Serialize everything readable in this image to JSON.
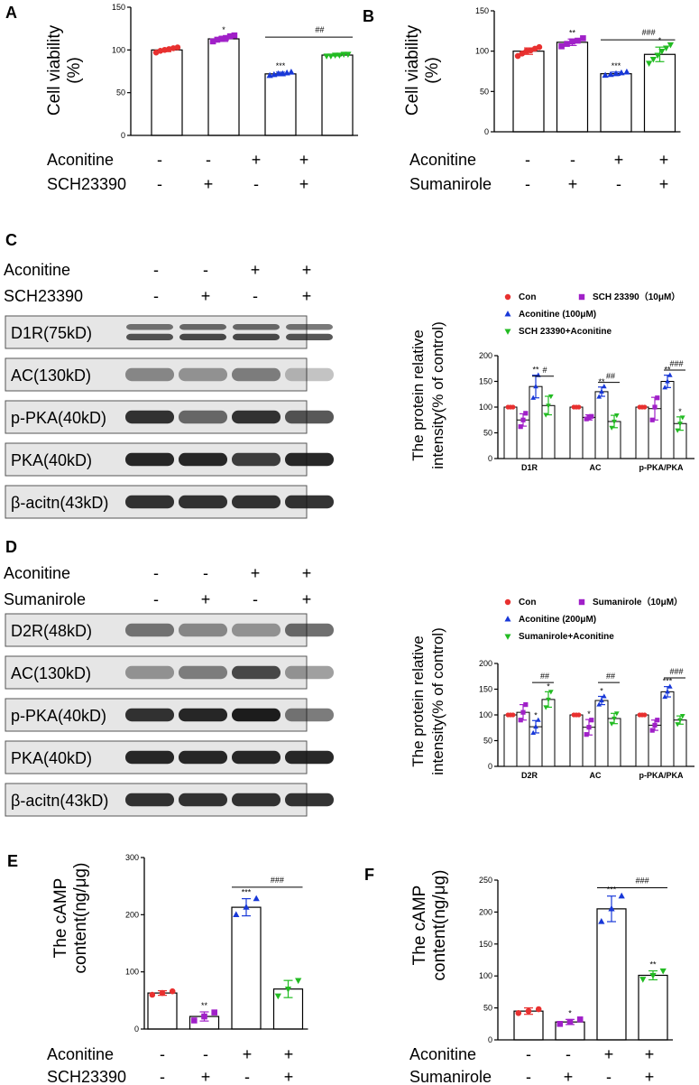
{
  "colors": {
    "con": "#e8302f",
    "drug": "#a020c8",
    "aconitine": "#1838d8",
    "combo": "#22bb22",
    "axis": "#000000",
    "band": "#111111"
  },
  "sig_marks": {
    "one": "*",
    "two": "**",
    "three": "***",
    "h1": "#",
    "h2": "##",
    "h3": "###"
  },
  "panels": {
    "A": {
      "label": "A",
      "ylabel_line1": "Cell viability",
      "ylabel_line2": "(%)",
      "rows": [
        {
          "label": "Aconitine",
          "signs": [
            "-",
            "-",
            "+",
            "+"
          ]
        },
        {
          "label": "SCH23390",
          "signs": [
            "-",
            "+",
            "-",
            "+"
          ]
        }
      ]
    },
    "B": {
      "label": "B",
      "ylabel_line1": "Cell viability",
      "ylabel_line2": "(%)",
      "rows": [
        {
          "label": "Aconitine",
          "signs": [
            "-",
            "-",
            "+",
            "+"
          ]
        },
        {
          "label": "Sumanirole",
          "signs": [
            "-",
            "+",
            "-",
            "+"
          ]
        }
      ]
    },
    "C": {
      "label": "C",
      "rows": [
        {
          "label": "Aconitine",
          "signs": [
            "-",
            "-",
            "+",
            "+"
          ]
        },
        {
          "label": "SCH23390",
          "signs": [
            "-",
            "+",
            "-",
            "+"
          ]
        }
      ],
      "blots": [
        "D1R(75kD)",
        "AC(130kD)",
        "p-PKA(40kD)",
        "PKA(40kD)",
        "β-acitn(43kD)"
      ],
      "legend": [
        "Con",
        "SCH 23390（10μM）",
        "Aconitine (100μM)",
        "SCH 23390+Aconitine"
      ],
      "ylabel_line1": "The protein relative",
      "ylabel_line2": "intensity(% of control)"
    },
    "D": {
      "label": "D",
      "rows": [
        {
          "label": "Aconitine",
          "signs": [
            "-",
            "-",
            "+",
            "+"
          ]
        },
        {
          "label": "Sumanirole",
          "signs": [
            "-",
            "+",
            "-",
            "+"
          ]
        }
      ],
      "blots": [
        "D2R(48kD)",
        "AC(130kD)",
        "p-PKA(40kD)",
        "PKA(40kD)",
        "β-acitn(43kD)"
      ],
      "legend": [
        "Con",
        "Sumanirole（10μM）",
        "Aconitine (200μM)",
        "Sumanirole+Aconitine"
      ],
      "ylabel_line1": "The protein relative",
      "ylabel_line2": "intensity(% of control)"
    },
    "E": {
      "label": "E",
      "ylabel_line1": "The cAMP",
      "ylabel_line2": "content(ng/μg)",
      "rows": [
        {
          "label": "Aconitine",
          "signs": [
            "-",
            "-",
            "+",
            "+"
          ]
        },
        {
          "label": "SCH23390",
          "signs": [
            "-",
            "+",
            "-",
            "+"
          ]
        }
      ]
    },
    "F": {
      "label": "F",
      "ylabel_line1": "The cAMP",
      "ylabel_line2": "content(ng/μg)",
      "rows": [
        {
          "label": "Aconitine",
          "signs": [
            "-",
            "-",
            "+",
            "+"
          ]
        },
        {
          "label": "Sumanirole",
          "signs": [
            "-",
            "+",
            "-",
            "+"
          ]
        }
      ]
    }
  },
  "chart_data": [
    {
      "panel": "A",
      "type": "bar",
      "ylim": [
        0,
        150
      ],
      "yticks": [
        0,
        50,
        100,
        150
      ],
      "values": [
        100,
        113,
        72,
        94
      ],
      "errors": [
        2,
        3,
        2,
        1
      ],
      "points": [
        [
          97,
          99,
          100,
          101,
          102,
          103
        ],
        [
          110,
          112,
          113,
          114,
          116,
          117
        ],
        [
          70,
          71,
          72,
          72,
          73,
          74
        ],
        [
          93,
          93,
          94,
          94,
          95,
          95
        ]
      ],
      "marks": [
        "",
        "*",
        "***",
        ""
      ],
      "brackets": [
        {
          "from": 2,
          "to": 3,
          "label": "##"
        }
      ]
    },
    {
      "panel": "B",
      "type": "bar",
      "ylim": [
        0,
        150
      ],
      "yticks": [
        0,
        50,
        100,
        150
      ],
      "values": [
        100,
        111,
        72,
        96
      ],
      "errors": [
        4,
        4,
        2,
        9
      ],
      "points": [
        [
          94,
          97,
          100,
          101,
          103,
          105
        ],
        [
          106,
          109,
          112,
          113,
          116
        ],
        [
          70,
          71,
          72,
          73,
          74
        ],
        [
          85,
          90,
          95,
          100,
          104,
          108
        ]
      ],
      "marks": [
        "",
        "**",
        "***",
        "*"
      ],
      "brackets": [
        {
          "from": 2,
          "to": 3,
          "label": "###"
        }
      ]
    },
    {
      "panel": "C",
      "type": "bar",
      "ylim": [
        0,
        200
      ],
      "yticks": [
        0,
        50,
        100,
        150,
        200
      ],
      "categories": [
        "D1R",
        "AC",
        "p-PKA/PKA"
      ],
      "series": [
        {
          "name": "Con",
          "values": [
            100,
            100,
            100
          ],
          "errors": [
            0,
            0,
            0
          ],
          "points": [
            [
              100,
              100,
              100
            ],
            [
              100,
              100,
              100
            ],
            [
              100,
              100,
              100
            ]
          ]
        },
        {
          "name": "SCH 23390（10μM）",
          "values": [
            75,
            80,
            97
          ],
          "errors": [
            12,
            5,
            22
          ],
          "points": [
            [
              62,
              75,
              88
            ],
            [
              77,
              80,
              82
            ],
            [
              75,
              100,
              118
            ]
          ]
        },
        {
          "name": "Aconitine (100μM)",
          "values": [
            140,
            130,
            150
          ],
          "errors": [
            22,
            9,
            12
          ],
          "points": [
            [
              118,
              140,
              162
            ],
            [
              120,
              130,
              140
            ],
            [
              138,
              150,
              162
            ]
          ]
        },
        {
          "name": "SCH 23390+Aconitine",
          "values": [
            103,
            72,
            68
          ],
          "errors": [
            18,
            12,
            13
          ],
          "points": [
            [
              85,
              103,
              121
            ],
            [
              60,
              72,
              84
            ],
            [
              55,
              68,
              80
            ]
          ]
        }
      ],
      "marks": [
        [
          "",
          "",
          "**",
          ""
        ],
        [
          "",
          "",
          "**",
          ""
        ],
        [
          "",
          "",
          "**",
          "*"
        ]
      ],
      "brackets": [
        {
          "group": 0,
          "label": "#"
        },
        {
          "group": 1,
          "label": "##"
        },
        {
          "group": 2,
          "label": "###"
        }
      ]
    },
    {
      "panel": "D",
      "type": "bar",
      "ylim": [
        0,
        200
      ],
      "yticks": [
        0,
        50,
        100,
        150,
        200
      ],
      "categories": [
        "D2R",
        "AC",
        "p-PKA/PKA"
      ],
      "series": [
        {
          "name": "Con",
          "values": [
            100,
            100,
            100
          ],
          "errors": [
            0,
            0,
            0
          ],
          "points": [
            [
              100,
              100,
              100
            ],
            [
              100,
              100,
              100
            ],
            [
              100,
              100,
              100
            ]
          ]
        },
        {
          "name": "Sumanirole（10μM）",
          "values": [
            105,
            76,
            80
          ],
          "errors": [
            15,
            15,
            10
          ],
          "points": [
            [
              90,
              105,
              120
            ],
            [
              62,
              76,
              90
            ],
            [
              70,
              80,
              90
            ]
          ]
        },
        {
          "name": "Aconitine (200μM)",
          "values": [
            77,
            128,
            145
          ],
          "errors": [
            12,
            8,
            10
          ],
          "points": [
            [
              65,
              77,
              90
            ],
            [
              120,
              128,
              136
            ],
            [
              135,
              145,
              155
            ]
          ]
        },
        {
          "name": "Sumanirole+Aconitine",
          "values": [
            130,
            93,
            90
          ],
          "errors": [
            15,
            10,
            8
          ],
          "points": [
            [
              115,
              130,
              145
            ],
            [
              83,
              93,
              103
            ],
            [
              82,
              90,
              98
            ]
          ]
        }
      ],
      "marks": [
        [
          "",
          "",
          "*",
          "*"
        ],
        [
          "",
          "*",
          "*",
          ""
        ],
        [
          "",
          "",
          "***",
          ""
        ]
      ],
      "brackets": [
        {
          "group": 0,
          "label": "##"
        },
        {
          "group": 1,
          "label": "##"
        },
        {
          "group": 2,
          "label": "###"
        }
      ]
    },
    {
      "panel": "E",
      "type": "bar",
      "ylim": [
        0,
        300
      ],
      "yticks": [
        0,
        100,
        200,
        300
      ],
      "values": [
        63,
        22,
        213,
        70
      ],
      "errors": [
        4,
        8,
        15,
        15
      ],
      "points": [
        [
          60,
          63,
          66
        ],
        [
          15,
          22,
          29
        ],
        [
          200,
          213,
          228
        ],
        [
          58,
          70,
          85
        ]
      ],
      "marks": [
        "",
        "**",
        "***",
        ""
      ],
      "brackets": [
        {
          "from": 2,
          "to": 3,
          "label": "###"
        }
      ]
    },
    {
      "panel": "F",
      "type": "bar",
      "ylim": [
        0,
        250
      ],
      "yticks": [
        0,
        50,
        100,
        150,
        200,
        250
      ],
      "values": [
        45,
        28,
        205,
        101
      ],
      "errors": [
        5,
        4,
        20,
        7
      ],
      "points": [
        [
          42,
          45,
          48
        ],
        [
          25,
          28,
          32
        ],
        [
          185,
          205,
          225
        ],
        [
          95,
          101,
          108
        ]
      ],
      "marks": [
        "",
        "*",
        "***",
        "**"
      ],
      "brackets": [
        {
          "from": 2,
          "to": 3,
          "label": "###"
        }
      ]
    }
  ]
}
